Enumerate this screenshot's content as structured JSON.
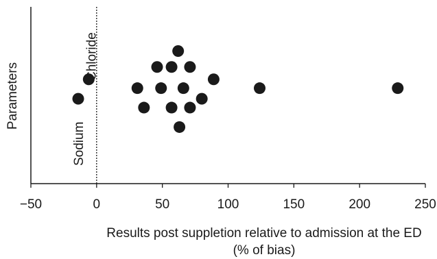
{
  "chart_data": {
    "type": "scatter",
    "xlabel_lines": [
      "Results post suppletion relative to admission at the ED",
      "(% of bias)"
    ],
    "ylabel": "Parameters",
    "xlim": [
      -50,
      250
    ],
    "xticks": [
      -50,
      0,
      50,
      100,
      150,
      200,
      250
    ],
    "xtick_labels": [
      "−50",
      "0",
      "50",
      "100",
      "150",
      "200",
      "250"
    ],
    "ylim": [
      0,
      1
    ],
    "reference_line_x": 0,
    "grid": false,
    "annotations": [
      {
        "text": "Sodium",
        "x": -14,
        "y": 0.48
      },
      {
        "text": "Chloride",
        "x": -5,
        "y": 0.62
      }
    ],
    "points": [
      {
        "x": -14,
        "y": 0.48
      },
      {
        "x": -6,
        "y": 0.59
      },
      {
        "x": 31,
        "y": 0.54
      },
      {
        "x": 36,
        "y": 0.43
      },
      {
        "x": 46,
        "y": 0.66
      },
      {
        "x": 49,
        "y": 0.54
      },
      {
        "x": 57,
        "y": 0.66
      },
      {
        "x": 57,
        "y": 0.43
      },
      {
        "x": 62,
        "y": 0.75
      },
      {
        "x": 63,
        "y": 0.32
      },
      {
        "x": 66,
        "y": 0.54
      },
      {
        "x": 71,
        "y": 0.66
      },
      {
        "x": 71,
        "y": 0.43
      },
      {
        "x": 80,
        "y": 0.48
      },
      {
        "x": 89,
        "y": 0.59
      },
      {
        "x": 124,
        "y": 0.54
      },
      {
        "x": 229,
        "y": 0.54
      }
    ]
  }
}
